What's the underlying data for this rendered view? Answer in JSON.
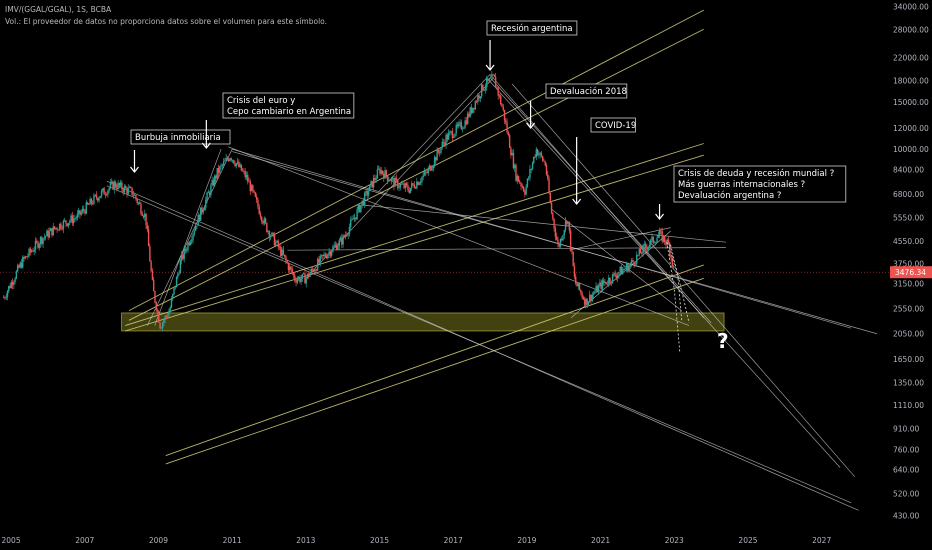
{
  "header": {
    "symbol_line": "IMV/(GGAL/GGAL), 1S, BCBA",
    "volume_note": "Vol.: El proveedor de datos no proporciona datos sobre el volumen para este símbolo."
  },
  "colors": {
    "background": "#000000",
    "up_candle": "#26a69a",
    "down_candle": "#ef5350",
    "channel_yellow": "#d8d27a",
    "trend_white": "#cfcfcf",
    "support_zone": "#4d4d14",
    "price_line": "#ef5350"
  },
  "chart_data": {
    "type": "candlestick",
    "scale": "log",
    "current_price": "3476.34",
    "y_ticks": [
      "34000.00",
      "28000.00",
      "22000.00",
      "18000.00",
      "15000.00",
      "12000.00",
      "10000.00",
      "8400.00",
      "6800.00",
      "5550.00",
      "4550.00",
      "3750.00",
      "3150.00",
      "2550.00",
      "2050.00",
      "1650.00",
      "1350.00",
      "1110.00",
      "910.00",
      "760.00",
      "640.00",
      "520.00",
      "430.00"
    ],
    "x_ticks": [
      "2005",
      "2007",
      "2009",
      "2011",
      "2013",
      "2015",
      "2017",
      "2019",
      "2021",
      "2023",
      "2025",
      "2027"
    ],
    "xlim": [
      2004.7,
      2028.8
    ],
    "ylim": [
      390,
      36000
    ],
    "price_path": [
      [
        2004.8,
        2800
      ],
      [
        2005.3,
        3800
      ],
      [
        2005.8,
        4600
      ],
      [
        2006.3,
        5200
      ],
      [
        2006.8,
        5600
      ],
      [
        2007.3,
        6600
      ],
      [
        2007.8,
        7400
      ],
      [
        2008.3,
        6900
      ],
      [
        2008.65,
        5600
      ],
      [
        2008.85,
        3000
      ],
      [
        2009.05,
        2200
      ],
      [
        2009.3,
        2500
      ],
      [
        2009.6,
        3800
      ],
      [
        2010.1,
        5600
      ],
      [
        2010.6,
        8200
      ],
      [
        2010.95,
        9500
      ],
      [
        2011.4,
        7800
      ],
      [
        2011.9,
        5200
      ],
      [
        2012.3,
        4200
      ],
      [
        2012.7,
        3300
      ],
      [
        2013.0,
        3300
      ],
      [
        2013.5,
        4000
      ],
      [
        2014.0,
        4600
      ],
      [
        2014.6,
        6600
      ],
      [
        2015.0,
        8400
      ],
      [
        2015.4,
        7500
      ],
      [
        2015.8,
        7100
      ],
      [
        2016.3,
        8200
      ],
      [
        2016.8,
        11000
      ],
      [
        2017.3,
        12500
      ],
      [
        2017.8,
        17000
      ],
      [
        2018.1,
        18500
      ],
      [
        2018.35,
        14000
      ],
      [
        2018.7,
        8000
      ],
      [
        2018.95,
        7000
      ],
      [
        2019.25,
        10000
      ],
      [
        2019.5,
        8800
      ],
      [
        2019.65,
        6000
      ],
      [
        2019.85,
        4300
      ],
      [
        2020.1,
        5600
      ],
      [
        2020.3,
        3200
      ],
      [
        2020.6,
        2700
      ],
      [
        2021.0,
        3100
      ],
      [
        2021.4,
        3400
      ],
      [
        2021.8,
        3700
      ],
      [
        2022.2,
        4300
      ],
      [
        2022.6,
        4800
      ],
      [
        2022.85,
        4400
      ],
      [
        2023.0,
        3476.34
      ]
    ],
    "yellow_channel_lines": [
      {
        "from": [
          2008.2,
          2500
        ],
        "to": [
          2023.8,
          33000
        ]
      },
      {
        "from": [
          2008.2,
          2300
        ],
        "to": [
          2023.8,
          28000
        ]
      },
      {
        "from": [
          2008.1,
          2200
        ],
        "to": [
          2023.8,
          10500
        ]
      },
      {
        "from": [
          2008.1,
          2100
        ],
        "to": [
          2023.8,
          9500
        ]
      },
      {
        "from": [
          2009.2,
          720
        ],
        "to": [
          2023.8,
          3700
        ]
      },
      {
        "from": [
          2009.2,
          670
        ],
        "to": [
          2023.8,
          3300
        ]
      }
    ],
    "support_zone": {
      "x0": 2008.0,
      "x1": 2024.35,
      "y_low": 2100,
      "y_high": 2450
    },
    "annotations": [
      {
        "text": [
          "Burbuja inmobiliaria"
        ],
        "x": 2008.35
      },
      {
        "text": [
          "Crisis del euro y",
          "Cepo cambiario en Argentina"
        ],
        "x": 2010.3
      },
      {
        "text": [
          "Recesión argentina"
        ],
        "x": 2018.0
      },
      {
        "text": [
          "Devaluación 2018"
        ],
        "x": 2019.1
      },
      {
        "text": [
          "COVID-19"
        ],
        "x": 2020.35
      },
      {
        "text": [
          "Crisis de deuda y recesión mundial ?",
          "Más guerras internacionales ?",
          "Devaluación argentina ?"
        ],
        "x": 2022.6
      }
    ],
    "question_mark": "?"
  }
}
